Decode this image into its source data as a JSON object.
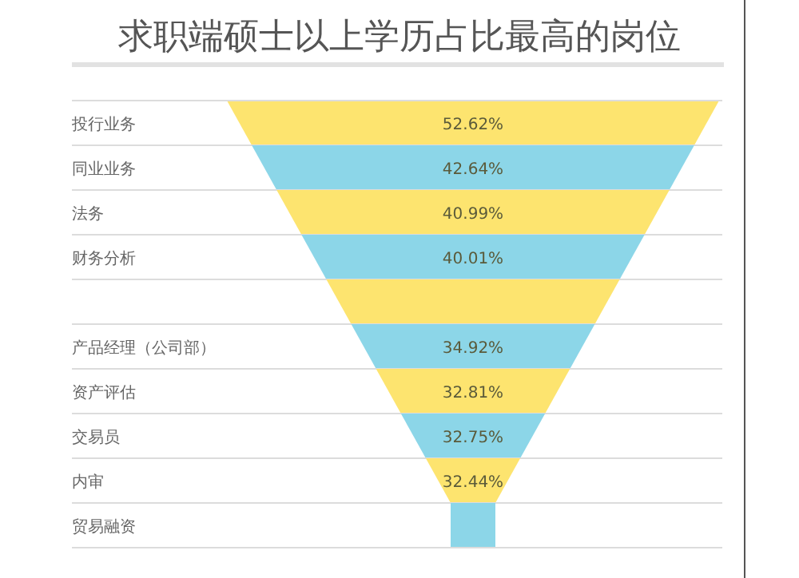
{
  "chart_data": {
    "type": "other",
    "title": "求职端硕士以上学历占比最高的岗位",
    "categories": [
      "投行业务",
      "同业业务",
      "法务",
      "财务分析",
      null,
      "产品经理（公司部）",
      "资产评估",
      "交易员",
      "内审",
      "贸易融资"
    ],
    "values": [
      52.62,
      42.64,
      40.99,
      40.01,
      null,
      34.92,
      32.81,
      32.75,
      32.44,
      null
    ],
    "value_labels": [
      "52.62%",
      "42.64%",
      "40.99%",
      "40.01%",
      null,
      "34.92%",
      "32.81%",
      "32.75%",
      "32.44%",
      null
    ],
    "colors": [
      "#fde46f",
      "#8cd6e8",
      "#fde46f",
      "#8cd6e8",
      "#fde46f",
      "#8cd6e8",
      "#fde46f",
      "#8cd6e8",
      "#fde46f",
      "#8cd6e8"
    ]
  }
}
